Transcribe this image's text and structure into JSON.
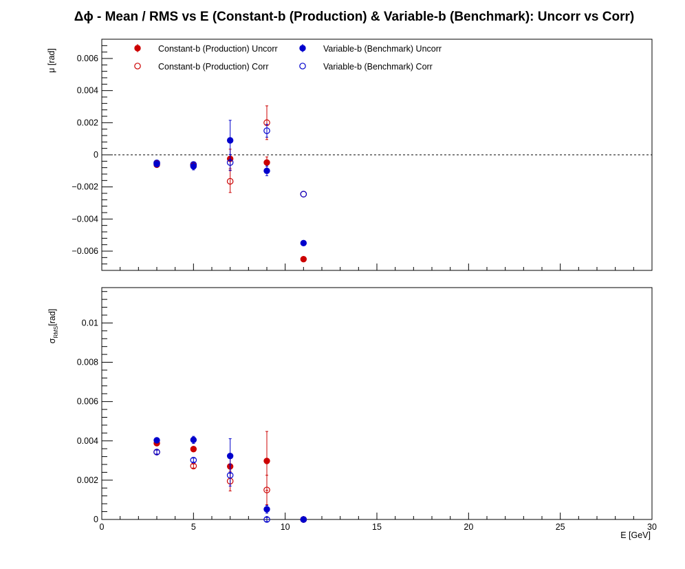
{
  "chart_data": {
    "type": "scatter",
    "title": "Δϕ  -  Mean / RMS vs E  (Constant-b (Production) & Variable-b (Benchmark): Uncorr vs Corr)",
    "xlabel": "E  [GeV]",
    "xlim": [
      0,
      30
    ],
    "x_ticks": [
      "0",
      "5",
      "10",
      "15",
      "20",
      "25",
      "30"
    ],
    "colors": {
      "production": "#cc0000",
      "benchmark": "#0000cc"
    },
    "legend": {
      "placement": "top-left",
      "entries": [
        "Constant-b (Production) Uncorr",
        "Constant-b (Production) Corr",
        "Variable-b (Benchmark) Uncorr",
        "Variable-b (Benchmark) Corr"
      ]
    },
    "panels": [
      {
        "ylabel": "μ  [rad]",
        "ylim": [
          -0.0072,
          0.0072
        ],
        "zero_line": true,
        "y_ticks": [
          "−0.006",
          "−0.004",
          "−0.002",
          "0",
          "0.002",
          "0.004",
          "0.006"
        ],
        "series": [
          {
            "name": "Constant-b (Production) Uncorr",
            "color": "#cc0000",
            "marker": "filled",
            "points": [
              {
                "x": 3,
                "y": -0.00062,
                "err": 0.0001
              },
              {
                "x": 5,
                "y": -0.00068,
                "err": 0.00015
              },
              {
                "x": 7,
                "y": -0.00025,
                "err": 0.0006
              },
              {
                "x": 9,
                "y": -0.00048,
                "err": 0.00035
              },
              {
                "x": 11,
                "y": -0.0065,
                "err": 0
              }
            ]
          },
          {
            "name": "Constant-b (Production) Corr",
            "color": "#cc0000",
            "marker": "open",
            "points": [
              {
                "x": 3,
                "y": -0.00055,
                "err": 0.0001
              },
              {
                "x": 5,
                "y": -0.00065,
                "err": 0.00012
              },
              {
                "x": 7,
                "y": -0.00165,
                "err": 0.0007
              },
              {
                "x": 9,
                "y": 0.002,
                "err": 0.00105
              },
              {
                "x": 11,
                "y": -0.00245,
                "err": 0
              }
            ]
          },
          {
            "name": "Variable-b (Benchmark) Uncorr",
            "color": "#0000cc",
            "marker": "filled",
            "points": [
              {
                "x": 3,
                "y": -0.00058,
                "err": 0.0001
              },
              {
                "x": 5,
                "y": -0.00072,
                "err": 0.00022
              },
              {
                "x": 7,
                "y": 0.0009,
                "err": 0.00125
              },
              {
                "x": 9,
                "y": -0.001,
                "err": 0.0003
              },
              {
                "x": 11,
                "y": -0.0055,
                "err": 0
              }
            ]
          },
          {
            "name": "Variable-b (Benchmark) Corr",
            "color": "#0000cc",
            "marker": "open",
            "points": [
              {
                "x": 3,
                "y": -0.0005,
                "err": 0.0001
              },
              {
                "x": 5,
                "y": -0.0006,
                "err": 0.00012
              },
              {
                "x": 7,
                "y": -0.00048,
                "err": 0.0005
              },
              {
                "x": 9,
                "y": 0.0015,
                "err": 0.0004
              },
              {
                "x": 11,
                "y": -0.00245,
                "err": 0
              }
            ]
          }
        ]
      },
      {
        "ylabel": "σ",
        "ylabel_sub": "RMS",
        "ylabel_unit": "[rad]",
        "ylim": [
          0,
          0.0118
        ],
        "zero_line": false,
        "y_ticks": [
          "0",
          "0.002",
          "0.004",
          "0.006",
          "0.008",
          "0.01"
        ],
        "series": [
          {
            "name": "Constant-b (Production) Uncorr",
            "color": "#cc0000",
            "marker": "filled",
            "points": [
              {
                "x": 3,
                "y": 0.00388,
                "err": 0.0001
              },
              {
                "x": 5,
                "y": 0.00358,
                "err": 0.00012
              },
              {
                "x": 7,
                "y": 0.0027,
                "err": 0.0006
              },
              {
                "x": 9,
                "y": 0.00298,
                "err": 0.0015
              },
              {
                "x": 11,
                "y": 0.0,
                "err": 0
              }
            ]
          },
          {
            "name": "Constant-b (Production) Corr",
            "color": "#cc0000",
            "marker": "open",
            "points": [
              {
                "x": 3,
                "y": 0.00343,
                "err": 0.0001
              },
              {
                "x": 5,
                "y": 0.00272,
                "err": 0.0001
              },
              {
                "x": 7,
                "y": 0.00195,
                "err": 0.0005
              },
              {
                "x": 9,
                "y": 0.0015,
                "err": 0.00075
              },
              {
                "x": 11,
                "y": 0.0,
                "err": 0
              }
            ]
          },
          {
            "name": "Variable-b (Benchmark) Uncorr",
            "color": "#0000cc",
            "marker": "filled",
            "points": [
              {
                "x": 3,
                "y": 0.00403,
                "err": 0.0001
              },
              {
                "x": 5,
                "y": 0.00405,
                "err": 0.00018
              },
              {
                "x": 7,
                "y": 0.00323,
                "err": 0.00088
              },
              {
                "x": 9,
                "y": 0.00052,
                "err": 0.0002
              },
              {
                "x": 11,
                "y": 0.0,
                "err": 0
              }
            ]
          },
          {
            "name": "Variable-b (Benchmark) Corr",
            "color": "#0000cc",
            "marker": "open",
            "points": [
              {
                "x": 3,
                "y": 0.00343,
                "err": 0.0001
              },
              {
                "x": 5,
                "y": 0.00302,
                "err": 0.0001
              },
              {
                "x": 7,
                "y": 0.00225,
                "err": 0.00055
              },
              {
                "x": 9,
                "y": 0.0,
                "err": 0.0001
              },
              {
                "x": 11,
                "y": 0.0,
                "err": 0
              }
            ]
          }
        ]
      }
    ]
  }
}
